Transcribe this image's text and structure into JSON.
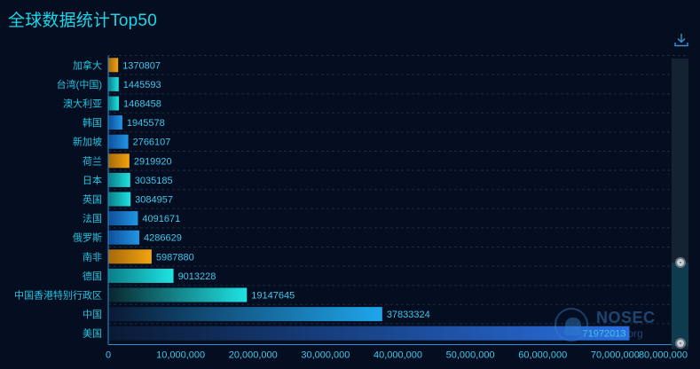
{
  "title": "全球数据统计Top50",
  "toolbar": {
    "download_icon": "download-icon"
  },
  "watermark": {
    "text": "NOSEC",
    "sub": "nosec.org"
  },
  "colors": {
    "orange": "#e0940c",
    "teal": "#19d4d4",
    "cyan": "#0fc6dc",
    "blue": "#1d7fd8",
    "axis": "#2c8ecf"
  },
  "chart_data": {
    "type": "bar",
    "orientation": "horizontal",
    "categories": [
      "加拿大",
      "台湾(中国)",
      "澳大利亚",
      "韩国",
      "新加坡",
      "荷兰",
      "日本",
      "英国",
      "法国",
      "俄罗斯",
      "南非",
      "德国",
      "中国香港特别行政区",
      "中国",
      "美国"
    ],
    "values": [
      1370807,
      1445593,
      1468458,
      1945578,
      2766107,
      2919920,
      3035185,
      3084957,
      4091671,
      4286629,
      5987880,
      9013228,
      19147645,
      37833324,
      71972013
    ],
    "bar_colors": [
      "orange",
      "teal",
      "teal",
      "blue",
      "blue",
      "orange",
      "teal",
      "teal",
      "blue",
      "blue",
      "orange",
      "teal",
      "teal",
      "blue",
      "blue"
    ],
    "x_ticks": [
      "0",
      "10,000,000",
      "20,000,000",
      "30,000,000",
      "40,000,000",
      "50,000,000",
      "60,000,000",
      "70,000,000",
      "80,000,000"
    ],
    "xlim": [
      0,
      80000000
    ],
    "grid": "dashed horizontal",
    "legend": "none",
    "data_zoom": {
      "visible_range_percent": [
        0,
        30
      ]
    }
  }
}
